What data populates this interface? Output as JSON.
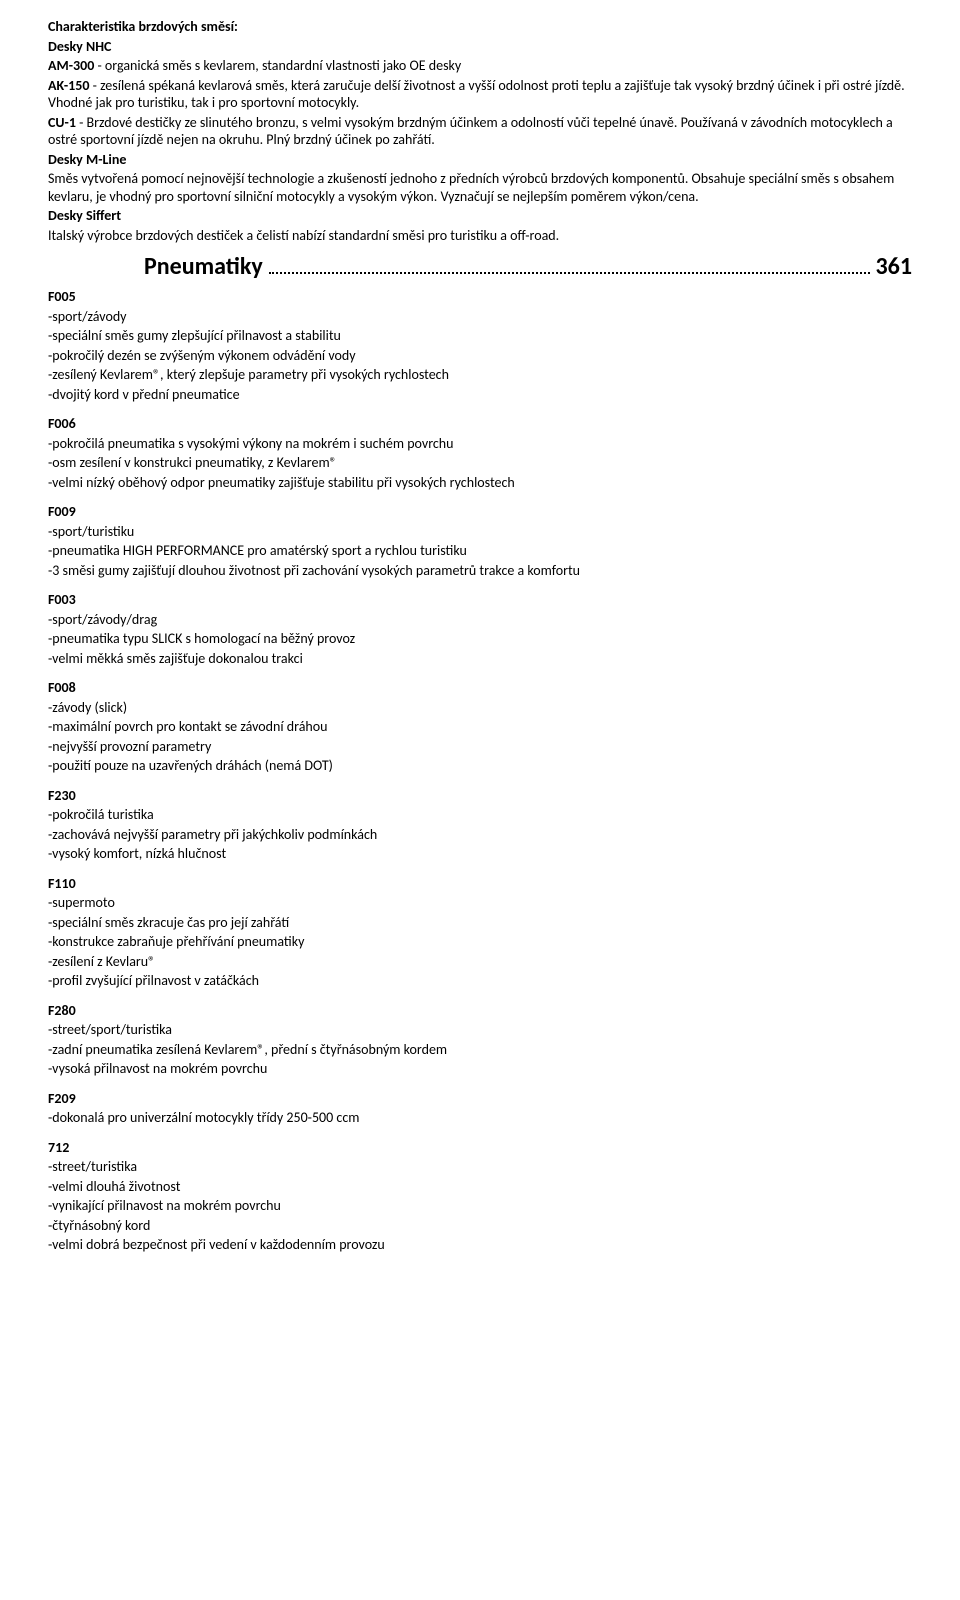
{
  "intro": {
    "heading": "Charakteristika brzdových směsí:",
    "desky_nhc_label": "Desky NHC",
    "am300_label": "AM-300",
    "am300_text": " - organická směs s kevlarem, standardní vlastnosti jako OE desky",
    "ak150_label": "AK-150",
    "ak150_text": " - zesílená spékaná kevlarová směs, která zaručuje delší životnost a vyšší odolnost proti teplu a zajišťuje tak vysoký brzdný účinek i při ostré jízdě. Vhodné jak pro turistiku, tak i pro sportovní motocykly.",
    "cu1_label": "CU-1",
    "cu1_text": " - Brzdové destičky ze slinutého bronzu, s velmi vysokým brzdným účinkem a odolností vůči tepelné únavě. Používaná v závodních motocyklech a ostré sportovní jízdě nejen na okruhu. Plný brzdný účinek po zahřátí.",
    "mline_label": "Desky M-Line",
    "mline_text": "Směs vytvořená pomocí nejnovější technologie a zkušeností jednoho z předních výrobců brzdových komponentů. Obsahuje speciální směs s obsahem kevlaru, je vhodný pro sportovní silniční motocykly a vysokým výkon. Vyznačují se nejlepším poměrem výkon/cena.",
    "siffert_label": "Desky Siffert",
    "siffert_text": "Italský výrobce brzdových destiček a čelistí nabízí standardní směsi pro turistiku a off-road."
  },
  "toc": {
    "title": "Pneumatiky",
    "page": "361"
  },
  "products": [
    {
      "code": "F005",
      "lines": [
        "-sport/závody",
        "-speciální směs gumy zlepšující přilnavost a stabilitu",
        "-pokročilý dezén se zvýšeným výkonem odvádění vody",
        "-zesílený Kevlarem®, který zlepšuje parametry při vysokých rychlostech",
        "-dvojitý kord v přední pneumatice"
      ]
    },
    {
      "code": "F006",
      "lines": [
        "-pokročilá pneumatika s vysokými výkony na mokrém i suchém povrchu",
        "-osm zesílení v konstrukci pneumatiky, z Kevlarem®",
        "-velmi nízký oběhový odpor pneumatiky zajišťuje stabilitu při vysokých rychlostech"
      ]
    },
    {
      "code": "F009",
      "lines": [
        "-sport/turistiku",
        "-pneumatika HIGH PERFORMANCE pro amatérský sport a rychlou turistiku",
        "-3 směsi gumy zajišťují dlouhou životnost při zachování vysokých parametrů trakce a komfortu"
      ]
    },
    {
      "code": "F003",
      "lines": [
        "-sport/závody/drag",
        "-pneumatika typu SLICK s homologací na běžný provoz",
        "-velmi měkká směs zajišťuje dokonalou trakci"
      ]
    },
    {
      "code": "F008",
      "lines": [
        "-závody (slick)",
        "-maximální povrch pro kontakt se závodní dráhou",
        "-nejvyšší provozní parametry",
        "-použití pouze na uzavřených dráhách (nemá DOT)"
      ]
    },
    {
      "code": "F230",
      "lines": [
        "-pokročilá turistika",
        "-zachovává nejvyšší parametry při jakýchkoliv podmínkách",
        "-vysoký komfort, nízká hlučnost"
      ]
    },
    {
      "code": "F110",
      "lines": [
        "-supermoto",
        "-speciální směs zkracuje čas pro její zahřátí",
        "-konstrukce zabraňuje přehřívání pneumatiky",
        "-zesílení z Kevlaru®",
        "-profil zvyšující přilnavost v zatáčkách"
      ]
    },
    {
      "code": "F280",
      "lines": [
        "-street/sport/turistika",
        "-zadní pneumatika zesílená Kevlarem®, přední s čtyřnásobným kordem",
        "-vysoká přilnavost na mokrém povrchu"
      ]
    },
    {
      "code": "F209",
      "lines": [
        "-dokonalá pro univerzální motocykly třídy 250-500 ccm"
      ]
    },
    {
      "code": "712",
      "lines": [
        "-street/turistika",
        "-velmi dlouhá životnost",
        "-vynikající přilnavost na mokrém povrchu",
        "-čtyřnásobný kord",
        "-velmi dobrá bezpečnost při vedení v každodenním provozu"
      ]
    }
  ]
}
